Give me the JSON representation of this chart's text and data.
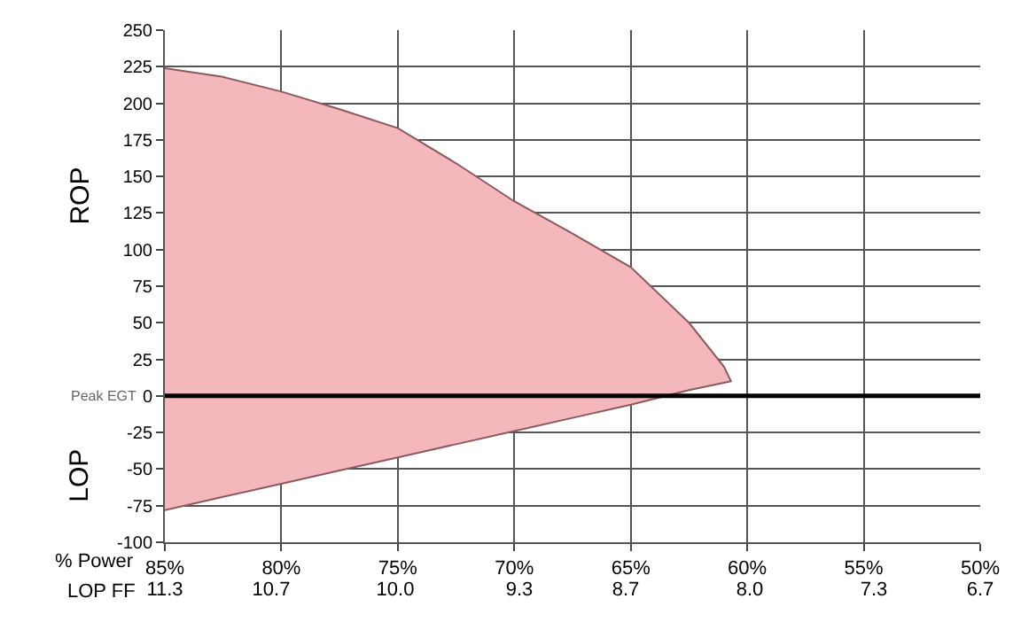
{
  "chart_data": {
    "type": "area",
    "series": [
      {
        "color": "#f4b8bc",
        "x": [
          85,
          82.5,
          80,
          77.5,
          75,
          72.5,
          70,
          67.5,
          65,
          62.5,
          61,
          60.7,
          61,
          62.5,
          65,
          67.5,
          70,
          72.5,
          75,
          77.5,
          80,
          82.5,
          85
        ],
        "values": [
          224,
          218,
          208,
          196,
          183,
          159,
          133,
          111,
          88,
          50,
          20,
          10,
          9,
          4,
          -6,
          -15,
          -24,
          -33,
          -42,
          -51,
          -60,
          -69,
          -78
        ]
      }
    ],
    "xlim": [
      85,
      50
    ],
    "ylim": [
      -100,
      250
    ],
    "xticks": [
      {
        "value": 85,
        "label": "85%"
      },
      {
        "value": 80,
        "label": "80%"
      },
      {
        "value": 75,
        "label": "75%"
      },
      {
        "value": 70,
        "label": "70%"
      },
      {
        "value": 65,
        "label": "65%"
      },
      {
        "value": 60,
        "label": "60%"
      },
      {
        "value": 55,
        "label": "55%"
      },
      {
        "value": 50,
        "label": "50%"
      }
    ],
    "x2lim": [
      11.3,
      6.7
    ],
    "x2ticks": [
      11.3,
      10.7,
      {
        "value": 10,
        "label": "10.0"
      },
      9.3,
      8.7,
      {
        "value": 8,
        "label": "8.0"
      },
      7.3,
      6.7
    ],
    "yticks": [
      -100,
      -75,
      -50,
      -25,
      0,
      25,
      50,
      75,
      100,
      125,
      150,
      175,
      200,
      225,
      250
    ],
    "ref_lines": [
      {
        "axis": "y",
        "value": 0,
        "label": "Peak EGT",
        "color": "#000000"
      }
    ],
    "annotations": [
      "ROP",
      "LOP",
      "% Power",
      "LOP FF"
    ],
    "grid": true
  }
}
